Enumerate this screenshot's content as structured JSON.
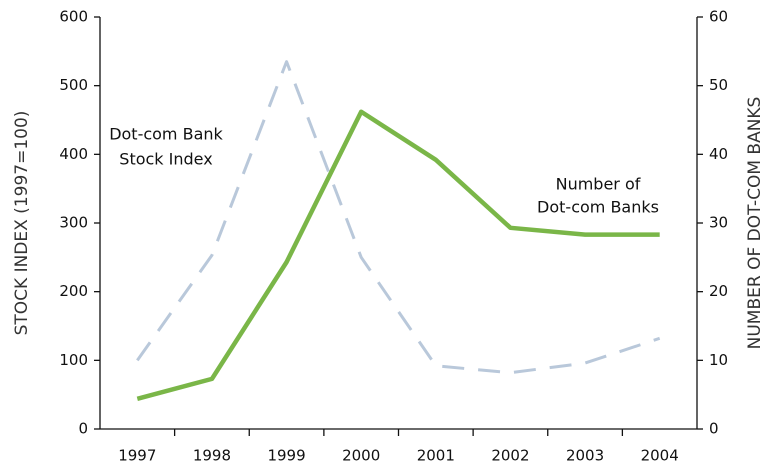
{
  "chart_data": {
    "type": "line",
    "categories": [
      "1997",
      "1998",
      "1999",
      "2000",
      "2001",
      "2002",
      "2003",
      "2004"
    ],
    "series": [
      {
        "name": "Dot-com Bank Stock Index",
        "color": "#b9c8da",
        "dashed": true,
        "values": [
          100,
          253,
          535,
          250,
          92,
          82,
          96,
          132
        ]
      },
      {
        "name": "Number of Dot-com Banks",
        "color": "#7ab648",
        "axis": "y2",
        "values": [
          4.4,
          7.3,
          24.3,
          46.2,
          39.2,
          29.3,
          28.3,
          28.3
        ]
      }
    ],
    "ylabel": "STOCK INDEX (1997=100)",
    "y2label": "NUMBER OF DOT-COM BANKS",
    "ylim": [
      0,
      600
    ],
    "yticks": [
      0,
      100,
      200,
      300,
      400,
      500,
      600
    ],
    "y2lim": [
      0,
      60
    ],
    "y2ticks": [
      0,
      10,
      20,
      30,
      40,
      50,
      60
    ],
    "annotations": [
      [
        "Dot-com Bank",
        "Stock Index"
      ],
      [
        "Number of",
        "Dot-com Banks"
      ]
    ]
  }
}
